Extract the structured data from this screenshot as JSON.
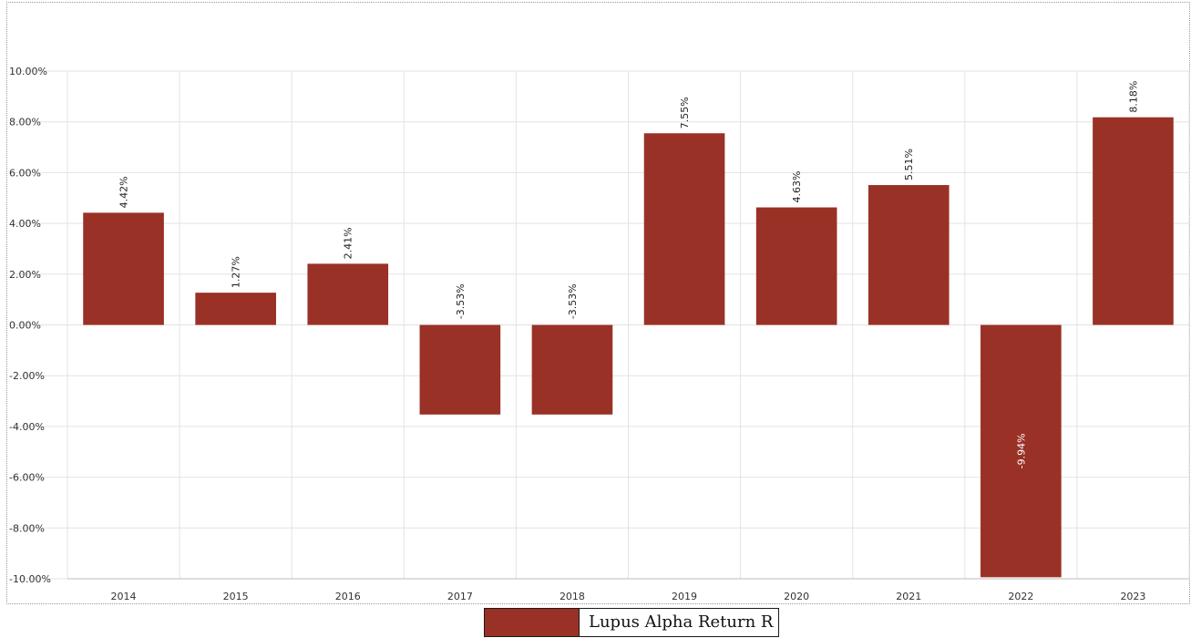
{
  "chart_data": {
    "type": "bar",
    "title": "",
    "xlabel": "",
    "ylabel": "",
    "categories": [
      "2014",
      "2015",
      "2016",
      "2017",
      "2018",
      "2019",
      "2020",
      "2021",
      "2022",
      "2023"
    ],
    "series": [
      {
        "name": "Lupus Alpha Return R",
        "color": "#9a3126",
        "values": [
          4.42,
          1.27,
          2.41,
          -3.53,
          -3.53,
          7.55,
          4.63,
          5.51,
          -9.94,
          8.18
        ],
        "labels": [
          "4.42%",
          "1.27%",
          "2.41%",
          "-3.53%",
          "-3.53%",
          "7.55%",
          "4.63%",
          "5.51%",
          "-9.94%",
          "8.18%"
        ]
      }
    ],
    "ylim": [
      -10,
      10
    ],
    "y_ticks": [
      10,
      8,
      6,
      4,
      2,
      0,
      -2,
      -4,
      -6,
      -8,
      -10
    ],
    "y_tick_labels": [
      "10.00%",
      "8.00%",
      "6.00%",
      "4.00%",
      "2.00%",
      "0.00%",
      "-2.00%",
      "-4.00%",
      "-6.00%",
      "-8.00%",
      "-10.00%"
    ],
    "grid": true,
    "legend_position": "bottom-center"
  },
  "legend": {
    "label": "Lupus Alpha Return R",
    "color": "#9a3126"
  }
}
